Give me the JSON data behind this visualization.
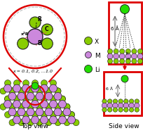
{
  "bg_color": "#ffffff",
  "top_view_label": "Top view",
  "side_view_label": "Side view",
  "X_color": "#88cc00",
  "M_color": "#cc88dd",
  "Li_color": "#22dd00",
  "bond_color": "#448800",
  "red": "#dd0000",
  "gray": "#aaaaaa",
  "x_label": "x = 0.1, 0.2, ...1.0"
}
